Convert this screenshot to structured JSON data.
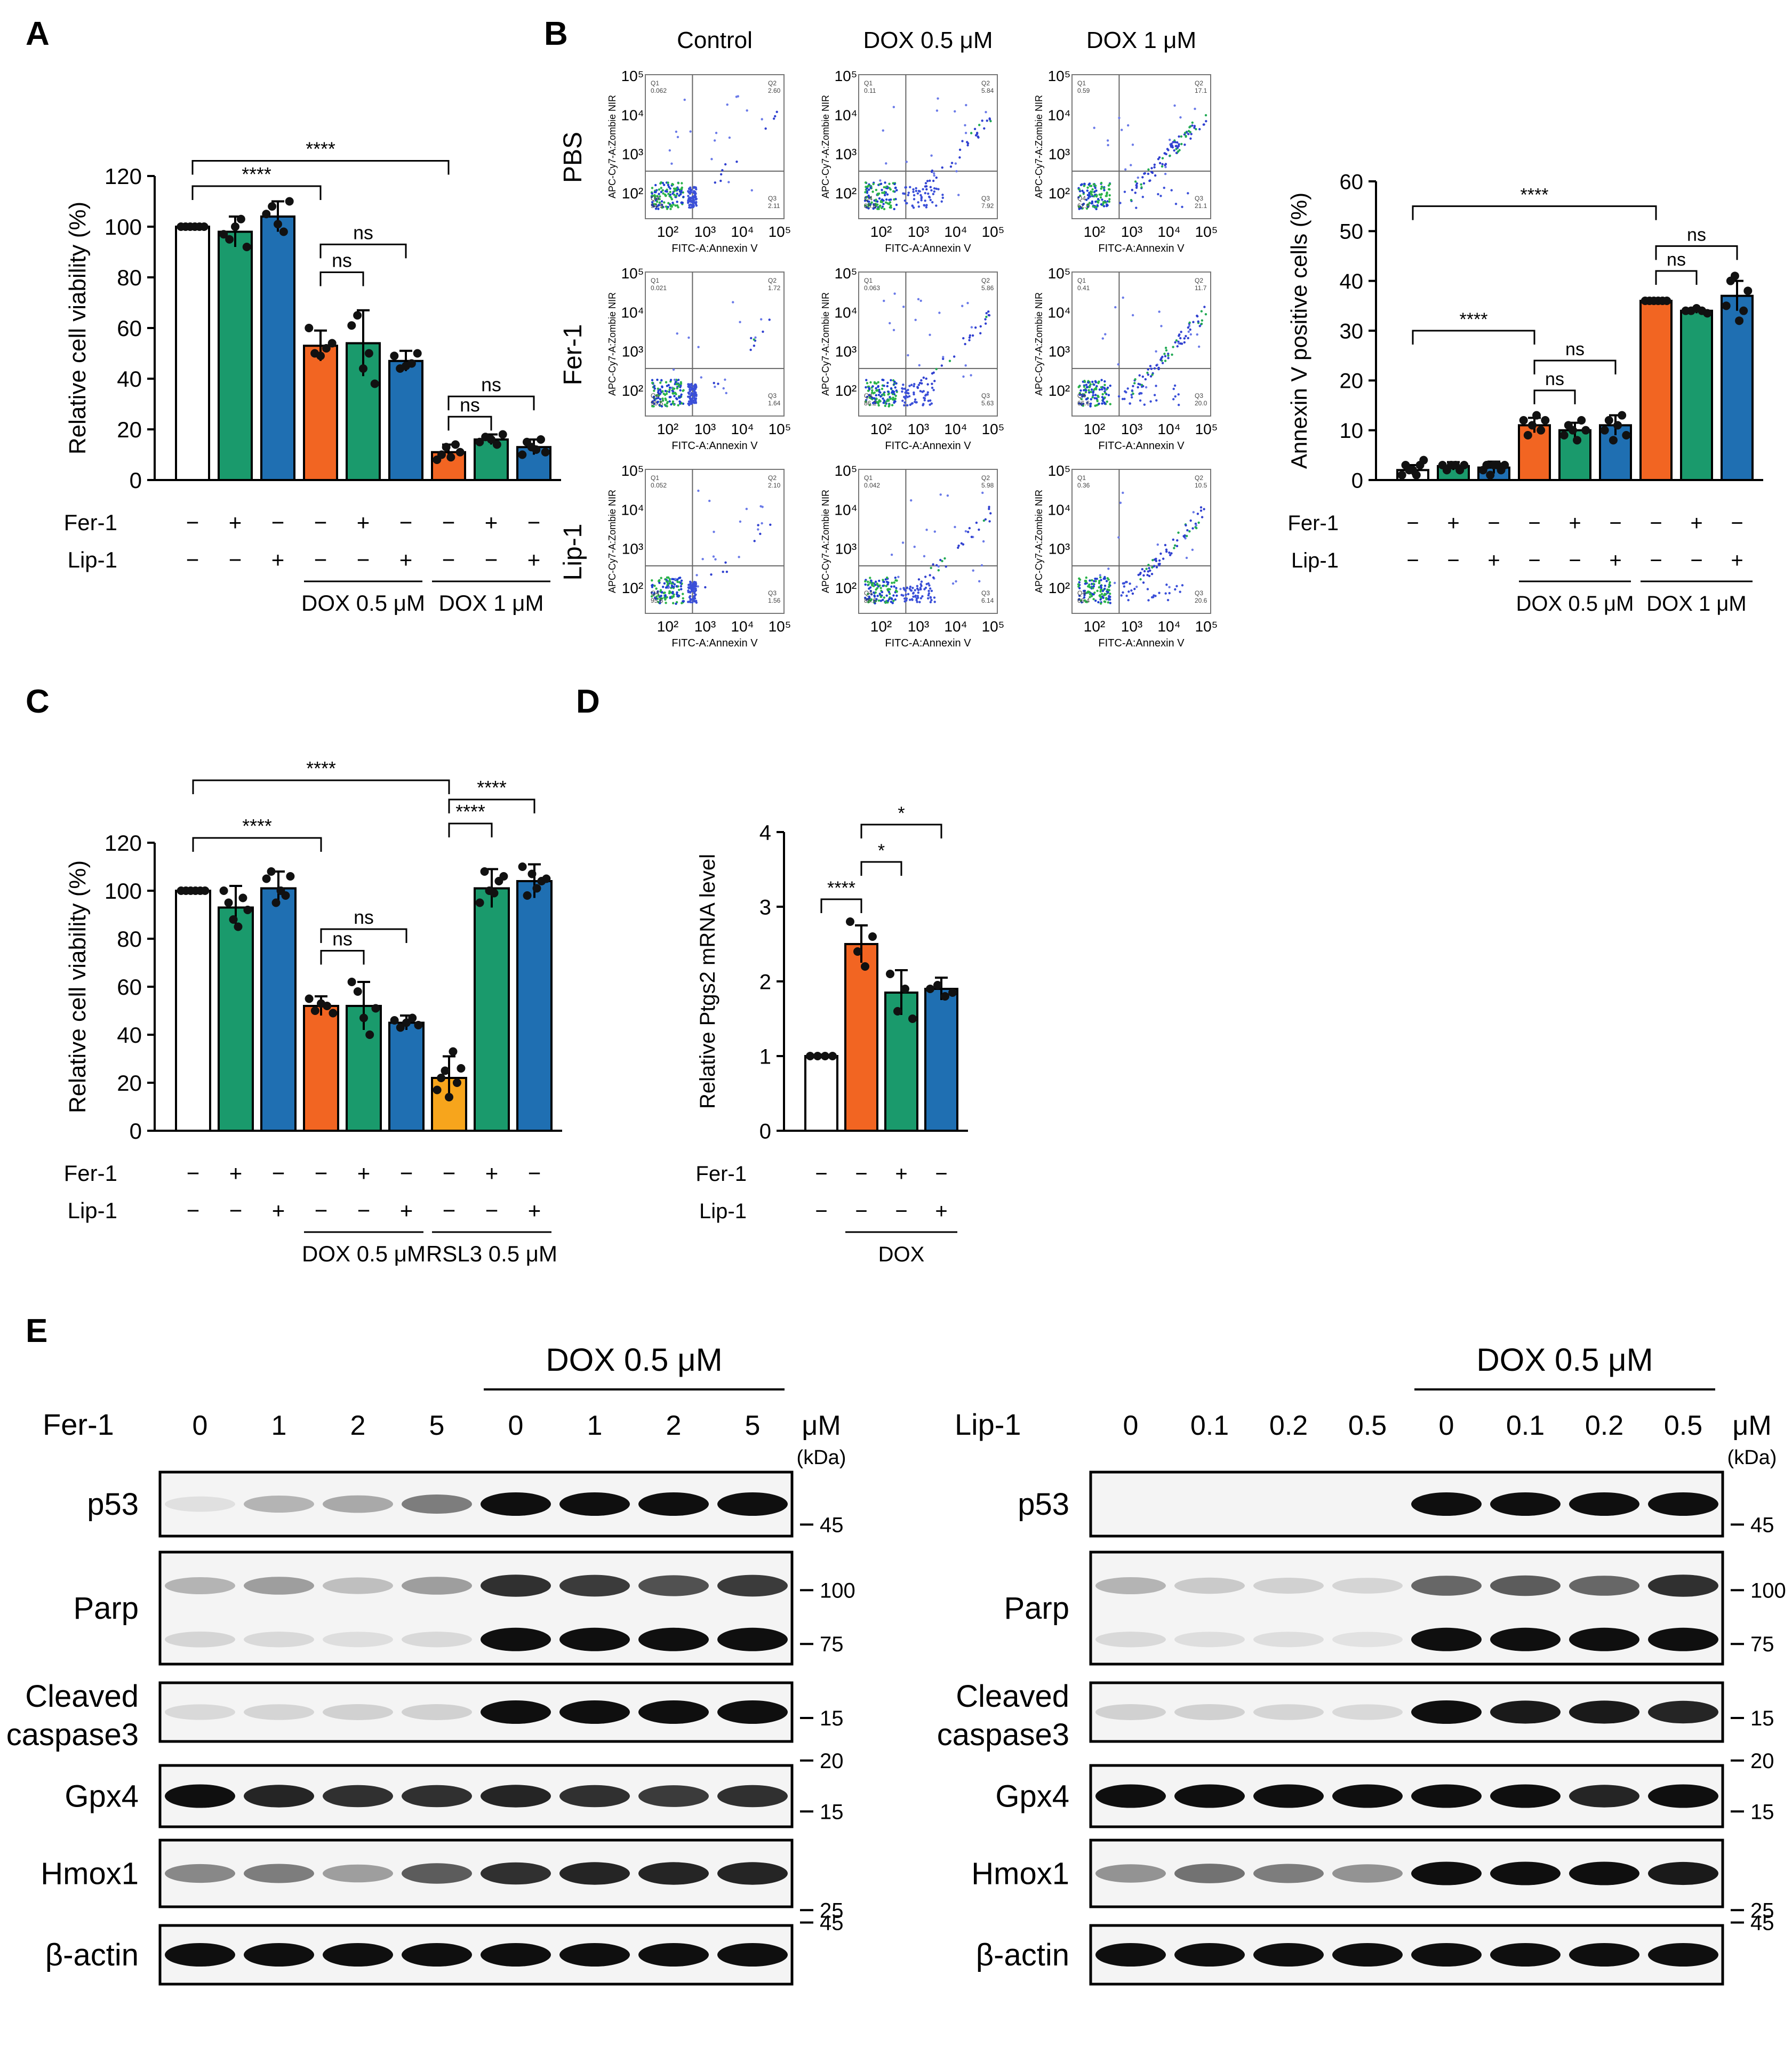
{
  "figure": {
    "panel_labels": [
      "A",
      "B",
      "C",
      "D",
      "E"
    ],
    "colors": {
      "control": "#ffffff",
      "dox": "#f26522",
      "fer": "#1a9a6c",
      "lip": "#1f6fb2",
      "rsl3": "#f7a51c",
      "dot": "#111111"
    }
  },
  "chart_data": [
    {
      "id": "A",
      "type": "bar",
      "ylabel": "Relative cell viability (%)",
      "ylim": [
        0,
        120
      ],
      "yticks": [
        0,
        20,
        40,
        60,
        80,
        100,
        120
      ],
      "values": [
        100,
        98,
        104,
        53,
        54,
        47,
        11,
        16,
        13
      ],
      "errors": [
        0.5,
        6,
        6,
        6,
        13,
        4,
        3,
        2,
        3
      ],
      "points": [
        [
          100,
          100,
          100,
          100,
          100,
          100
        ],
        [
          97,
          95,
          100,
          103,
          92
        ],
        [
          105,
          108,
          101,
          98,
          110
        ],
        [
          60,
          50,
          49,
          52,
          54
        ],
        [
          61,
          65,
          44,
          50,
          38
        ],
        [
          49,
          44,
          45,
          46,
          50
        ],
        [
          8,
          10,
          13,
          9,
          14,
          11
        ],
        [
          15,
          17,
          16,
          14,
          18
        ],
        [
          10,
          15,
          13,
          12,
          16,
          11
        ]
      ],
      "colors": [
        "control",
        "fer",
        "lip",
        "dox",
        "fer",
        "lip",
        "dox",
        "fer",
        "lip"
      ],
      "fer_row": [
        "−",
        "+",
        "−",
        "−",
        "+",
        "−",
        "−",
        "+",
        "−"
      ],
      "lip_row": [
        "−",
        "−",
        "+",
        "−",
        "−",
        "+",
        "−",
        "−",
        "+"
      ],
      "row_labels": [
        "Fer-1",
        "Lip-1"
      ],
      "groups": [
        {
          "label": "DOX 0.5 μM",
          "from": 3,
          "to": 5
        },
        {
          "label": "DOX 1 μM",
          "from": 6,
          "to": 8
        }
      ],
      "sig": [
        {
          "text": "****",
          "from": 0,
          "to": 6,
          "level": 126
        },
        {
          "text": "****",
          "from": 0,
          "to": 3,
          "level": 116
        },
        {
          "text": "ns",
          "from": 3,
          "to": 5,
          "level": 93
        },
        {
          "text": "ns",
          "from": 3,
          "to": 4,
          "level": 82
        },
        {
          "text": "ns",
          "from": 6,
          "to": 8,
          "level": 33
        },
        {
          "text": "ns",
          "from": 6,
          "to": 7,
          "level": 25
        }
      ]
    },
    {
      "id": "B",
      "type": "bar",
      "ylabel": "Annexin V positive cells (%)",
      "ylim": [
        0,
        60
      ],
      "yticks": [
        0,
        10,
        20,
        30,
        40,
        50,
        60
      ],
      "values": [
        2,
        2.8,
        2.5,
        11,
        10,
        11,
        36,
        34,
        37
      ],
      "errors": [
        1,
        0.8,
        1.2,
        1.5,
        1.5,
        2,
        0.3,
        0.5,
        3
      ],
      "points": [
        [
          1,
          3,
          2,
          2,
          1,
          3,
          4
        ],
        [
          3,
          2,
          3,
          3,
          2,
          3
        ],
        [
          2,
          3,
          1,
          3,
          3,
          2,
          3
        ],
        [
          12,
          9,
          11,
          13,
          10,
          12
        ],
        [
          9,
          11,
          10,
          8,
          12,
          10
        ],
        [
          10,
          12,
          8,
          11,
          13,
          9
        ],
        [
          36,
          36,
          36,
          36,
          36,
          36
        ],
        [
          34,
          34,
          34.5,
          34,
          33.5
        ],
        [
          35,
          40,
          41,
          32,
          34,
          38
        ]
      ],
      "colors": [
        "control",
        "fer",
        "lip",
        "dox",
        "fer",
        "lip",
        "dox",
        "fer",
        "lip"
      ],
      "fer_row": [
        "−",
        "+",
        "−",
        "−",
        "+",
        "−",
        "−",
        "+",
        "−"
      ],
      "lip_row": [
        "−",
        "−",
        "+",
        "−",
        "−",
        "+",
        "−",
        "−",
        "+"
      ],
      "row_labels": [
        "Fer-1",
        "Lip-1"
      ],
      "groups": [
        {
          "label": "DOX 0.5 μM",
          "from": 3,
          "to": 5
        },
        {
          "label": "DOX 1 μM",
          "from": 6,
          "to": 8
        }
      ],
      "sig": [
        {
          "text": "****",
          "from": 0,
          "to": 6,
          "level": 55
        },
        {
          "text": "****",
          "from": 0,
          "to": 3,
          "level": 30
        },
        {
          "text": "ns",
          "from": 3,
          "to": 5,
          "level": 24
        },
        {
          "text": "ns",
          "from": 3,
          "to": 4,
          "level": 18
        },
        {
          "text": "ns",
          "from": 6,
          "to": 8,
          "level": 47
        },
        {
          "text": "ns",
          "from": 6,
          "to": 7,
          "level": 42
        }
      ]
    },
    {
      "id": "C",
      "type": "bar",
      "ylabel": "Relative cell viability (%)",
      "ylim": [
        0,
        120
      ],
      "yticks": [
        0,
        20,
        40,
        60,
        80,
        100,
        120
      ],
      "values": [
        100,
        93,
        101,
        52,
        52,
        45,
        22,
        101,
        104
      ],
      "errors": [
        0.5,
        9,
        7,
        4,
        10,
        3,
        9,
        8,
        7
      ],
      "points": [
        [
          100,
          100,
          100,
          100,
          100,
          100
        ],
        [
          100,
          95,
          88,
          85,
          97,
          92
        ],
        [
          105,
          108,
          95,
          100,
          98,
          106
        ],
        [
          55,
          50,
          53,
          52,
          49
        ],
        [
          62,
          58,
          47,
          40,
          51
        ],
        [
          46,
          43,
          45,
          47,
          44
        ],
        [
          17,
          22,
          25,
          14,
          33,
          20,
          26
        ],
        [
          95,
          108,
          100,
          99,
          104,
          106
        ],
        [
          110,
          98,
          107,
          101,
          104,
          105
        ]
      ],
      "colors": [
        "control",
        "fer",
        "lip",
        "dox",
        "fer",
        "lip",
        "rsl3",
        "fer",
        "lip"
      ],
      "fer_row": [
        "−",
        "+",
        "−",
        "−",
        "+",
        "−",
        "−",
        "+",
        "−"
      ],
      "lip_row": [
        "−",
        "−",
        "+",
        "−",
        "−",
        "+",
        "−",
        "−",
        "+"
      ],
      "row_labels": [
        "Fer-1",
        "Lip-1"
      ],
      "groups": [
        {
          "label": "DOX 0.5 μM",
          "from": 3,
          "to": 5
        },
        {
          "label": "RSL3 0.5 μM",
          "from": 6,
          "to": 8
        }
      ],
      "sig": [
        {
          "text": "****",
          "from": 0,
          "to": 6,
          "level": 146
        },
        {
          "text": "****",
          "from": 0,
          "to": 3,
          "level": 122
        },
        {
          "text": "ns",
          "from": 3,
          "to": 5,
          "level": 84
        },
        {
          "text": "ns",
          "from": 3,
          "to": 4,
          "level": 75
        },
        {
          "text": "****",
          "from": 6,
          "to": 8,
          "level": 138
        },
        {
          "text": "****",
          "from": 6,
          "to": 7,
          "level": 128
        }
      ]
    },
    {
      "id": "D",
      "type": "bar",
      "ylabel": "Relative Ptgs2 mRNA level",
      "ylim": [
        0,
        4
      ],
      "yticks": [
        0,
        1,
        2,
        3,
        4
      ],
      "values": [
        1,
        2.5,
        1.85,
        1.9
      ],
      "errors": [
        0.02,
        0.25,
        0.3,
        0.15
      ],
      "points": [
        [
          1,
          1,
          1,
          1
        ],
        [
          2.8,
          2.4,
          2.2,
          2.6
        ],
        [
          2.1,
          1.6,
          1.9,
          1.5
        ],
        [
          1.9,
          1.95,
          1.8,
          1.85
        ]
      ],
      "colors": [
        "control",
        "dox",
        "fer",
        "lip"
      ],
      "fer_row": [
        "−",
        "−",
        "+",
        "−"
      ],
      "lip_row": [
        "−",
        "−",
        "−",
        "+"
      ],
      "row_labels": [
        "Fer-1",
        "Lip-1"
      ],
      "groups": [
        {
          "label": "DOX",
          "from": 1,
          "to": 3
        }
      ],
      "sig": [
        {
          "text": "****",
          "from": 0,
          "to": 1,
          "level": 3.1
        },
        {
          "text": "*",
          "from": 1,
          "to": 3,
          "level": 4.1
        },
        {
          "text": "*",
          "from": 1,
          "to": 2,
          "level": 3.6
        }
      ]
    }
  ],
  "flow": {
    "columns": [
      "Control",
      "DOX 0.5 μM",
      "DOX 1 μM"
    ],
    "rows": [
      "PBS",
      "Fer-1",
      "Lip-1"
    ],
    "ylabel": "APC-Cy7-A:Zombie NIR",
    "xlabel": "FITC-A:Annexin V",
    "ticks": [
      "10²",
      "10³",
      "10⁴",
      "10⁵"
    ],
    "quadrant_names": [
      "Q1",
      "Q2",
      "Q3",
      "Q4"
    ],
    "quadrants": [
      [
        [
          "0.062",
          "2.60",
          "2.11",
          "94.9"
        ],
        [
          "0.11",
          "5.84",
          "7.92",
          "85.8"
        ],
        [
          "0.59",
          "17.1",
          "21.1",
          "62.0"
        ]
      ],
      [
        [
          "0.021",
          "1.72",
          "1.64",
          "95.6"
        ],
        [
          "0.063",
          "5.86",
          "5.63",
          "86.2"
        ],
        [
          "0.41",
          "11.7",
          "20.0",
          "66.6"
        ]
      ],
      [
        [
          "0.052",
          "2.10",
          "1.56",
          "95.6"
        ],
        [
          "0.042",
          "5.98",
          "6.14",
          "86.6"
        ],
        [
          "0.36",
          "10.5",
          "20.6",
          "66.4"
        ]
      ]
    ],
    "intensity": [
      [
        0.1,
        0.5,
        1.0
      ],
      [
        0.1,
        0.4,
        0.8
      ],
      [
        0.1,
        0.4,
        0.8
      ]
    ]
  },
  "blots": {
    "unit": "μM",
    "kda_label": "(kDa)",
    "left": {
      "treatment": "Fer-1",
      "doses": [
        "0",
        "1",
        "2",
        "5",
        "0",
        "1",
        "2",
        "5"
      ],
      "dox_label": "DOX 0.5 μM"
    },
    "right": {
      "treatment": "Lip-1",
      "doses": [
        "0",
        "0.1",
        "0.2",
        "0.5",
        "0",
        "0.1",
        "0.2",
        "0.5"
      ],
      "dox_label": "DOX 0.5 μM"
    },
    "proteins": [
      {
        "name": "p53",
        "markers": [
          "45"
        ]
      },
      {
        "name": "Parp",
        "markers": [
          "100",
          "75"
        ]
      },
      {
        "name": "Cleaved caspase3",
        "line1": "Cleaved",
        "line2": "caspase3",
        "markers": [
          "15"
        ]
      },
      {
        "name": "Gpx4",
        "markers": [
          "20",
          "15"
        ]
      },
      {
        "name": "Hmox1",
        "markers": [
          "25"
        ]
      },
      {
        "name": "β-actin",
        "markers": [
          "45"
        ]
      }
    ],
    "left_intensity": {
      "p53": [
        0.05,
        0.25,
        0.3,
        0.5,
        1,
        1,
        1,
        1
      ],
      "parp_top": [
        0.25,
        0.35,
        0.2,
        0.35,
        0.85,
        0.8,
        0.7,
        0.8
      ],
      "parp_bot": [
        0.1,
        0.08,
        0.06,
        0.08,
        1,
        1,
        1,
        1
      ],
      "casp": [
        0.08,
        0.1,
        0.12,
        0.12,
        1,
        1,
        1,
        1
      ],
      "gpx4": [
        1,
        0.9,
        0.85,
        0.85,
        0.9,
        0.85,
        0.8,
        0.85
      ],
      "hmox1": [
        0.45,
        0.5,
        0.35,
        0.65,
        0.85,
        0.9,
        0.9,
        0.9
      ],
      "actin": [
        1,
        1,
        1,
        1,
        1,
        1,
        1,
        1
      ]
    },
    "right_intensity": {
      "p53": [
        0,
        0,
        0,
        0,
        1,
        1,
        1,
        1
      ],
      "parp_top": [
        0.25,
        0.15,
        0.12,
        0.1,
        0.6,
        0.65,
        0.6,
        0.85
      ],
      "parp_bot": [
        0.08,
        0.06,
        0.06,
        0.04,
        1,
        1,
        1,
        1
      ],
      "casp": [
        0.12,
        0.12,
        0.1,
        0.08,
        1,
        0.95,
        0.95,
        0.9
      ],
      "gpx4": [
        1,
        1,
        1,
        1,
        1,
        1,
        0.9,
        1
      ],
      "hmox1": [
        0.4,
        0.55,
        0.5,
        0.4,
        1,
        1,
        1,
        0.95
      ],
      "actin": [
        1,
        1,
        1,
        1,
        1,
        1,
        1,
        1
      ]
    }
  }
}
